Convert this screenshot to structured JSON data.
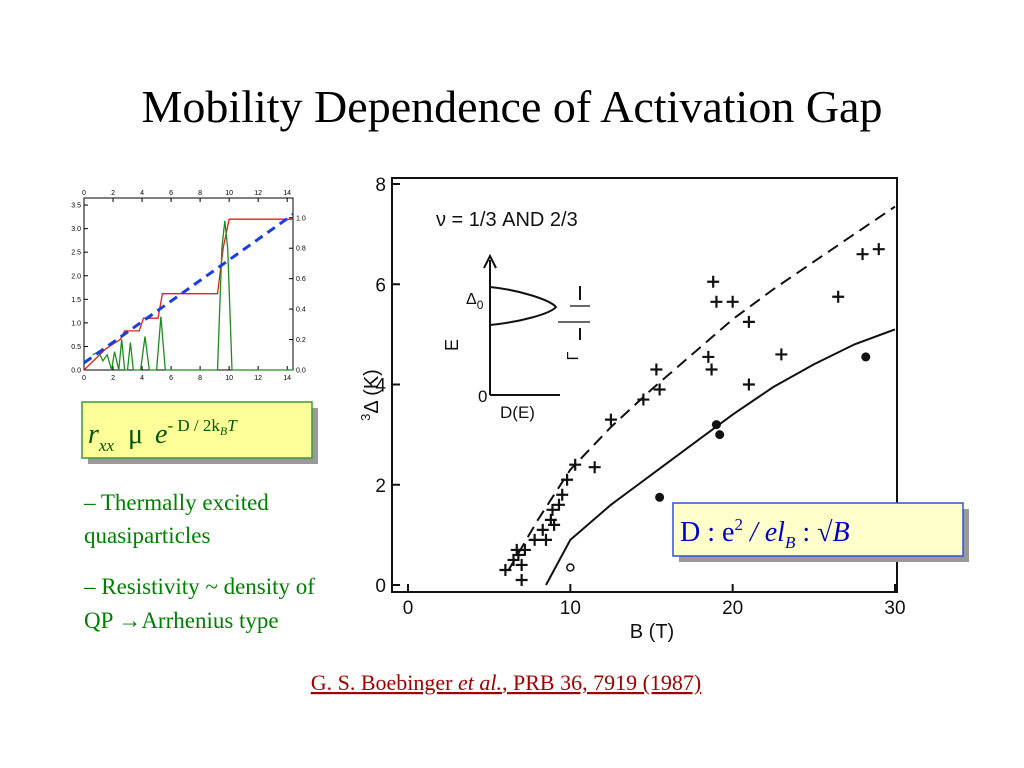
{
  "title": "Mobility Dependence of Activation Gap",
  "left_chart": {
    "type": "line",
    "xlim": [
      0,
      14.4
    ],
    "xticks": [
      0,
      2,
      4,
      6,
      8,
      10,
      12,
      14
    ],
    "ylim": [
      0,
      3.65
    ],
    "yticks": [
      {
        "value": 0,
        "label": "0.0"
      },
      0.5,
      {
        "value": 1,
        "label": "1.0"
      },
      1.5,
      {
        "value": 2,
        "label": "2.0"
      },
      2.5,
      {
        "value": 3,
        "label": "3.0"
      },
      3.5
    ],
    "y2lim": [
      0,
      1.13
    ],
    "y2ticks": [
      {
        "value": 0,
        "label": "0.0"
      },
      0.2,
      0.4,
      0.6,
      0.8,
      {
        "value": 1,
        "label": "1.0"
      }
    ],
    "series": [
      {
        "color": "#e02020",
        "style": "solid",
        "x": [
          0,
          0.5,
          1,
          1.5,
          2,
          2.5,
          2.8,
          3.8,
          4.1,
          5.1,
          5.4,
          9.2,
          9.6,
          10,
          14.4
        ],
        "values": [
          0,
          0.15,
          0.3,
          0.45,
          0.55,
          0.65,
          0.83,
          0.83,
          1.1,
          1.1,
          1.62,
          1.62,
          2.6,
          3.2,
          3.2
        ]
      },
      {
        "color": "#1a8f1a",
        "style": "solid",
        "axis": "y2",
        "x": [
          0.6,
          1,
          1.3,
          1.6,
          1.9,
          2.1,
          2.4,
          2.6,
          2.8,
          3.0,
          3.2,
          3.4,
          3.9,
          4.2,
          4.5,
          5.0,
          5.3,
          5.6,
          9.2,
          9.5,
          9.7,
          9.9,
          10.2,
          14.4
        ],
        "values": [
          0.1,
          0.12,
          0.06,
          0.1,
          0,
          0.12,
          0,
          0.2,
          0,
          0,
          0.18,
          0,
          0,
          0.22,
          0,
          0,
          0.35,
          0,
          0,
          0.8,
          0.98,
          0.8,
          0,
          0
        ]
      },
      {
        "color": "#1a3ee0",
        "style": "dashed",
        "x": [
          0,
          14.4
        ],
        "values": [
          0.15,
          3.3
        ]
      }
    ]
  },
  "formula1": {
    "r": "r",
    "sub": "xx",
    "prop": "μ",
    "e": "e",
    "exp": "- D / 2k",
    "expsub": "B",
    "expend": "T"
  },
  "bullets": [
    [
      "– Thermally excited",
      "quasiparticles"
    ],
    [
      "– Resistivity ~ density of",
      "QP ",
      "→",
      "Arrhenius type"
    ]
  ],
  "main_chart": {
    "type": "scatter",
    "xlabel": "B  (T)",
    "ylabel": "Δ  (K)",
    "ylabel_pre": "3",
    "annotation": "ν = 1/3  AND  2/3",
    "inset": {
      "ylabel": "E",
      "xlabel": "D(E)",
      "origin": "0",
      "gap": "Δ",
      "gap_sub": "0",
      "width": "Γ"
    },
    "xlim": [
      0,
      30
    ],
    "xticks": [
      0,
      10,
      20,
      30
    ],
    "ylim": [
      0,
      8
    ],
    "yticks": [
      0,
      2,
      4,
      6,
      8
    ],
    "color": "#111111",
    "series": [
      {
        "marker": "plus",
        "x": [
          6,
          6.5,
          6.7,
          6.8,
          7,
          7.2,
          7,
          7.8,
          8.3,
          8.5,
          8.8,
          8.9,
          9,
          9.5,
          9.3,
          9.8,
          10.3,
          11.5,
          12.5,
          14.5,
          15.3,
          15.5,
          18.5,
          18.7,
          18.8,
          19,
          20,
          21,
          21,
          23,
          26.5,
          28,
          29
        ],
        "values": [
          0.3,
          0.5,
          0.7,
          0.6,
          0.4,
          0.7,
          0.1,
          0.9,
          1.1,
          0.9,
          1.3,
          1.5,
          1.2,
          1.8,
          1.6,
          2.1,
          2.4,
          2.35,
          3.3,
          3.7,
          4.3,
          3.9,
          4.55,
          4.3,
          6.05,
          5.65,
          5.65,
          5.25,
          4.0,
          4.6,
          5.75,
          6.6,
          6.7
        ]
      },
      {
        "marker": "dot",
        "x": [
          15.5,
          19,
          19.2,
          28.2
        ],
        "values": [
          1.75,
          3.2,
          3.0,
          4.55
        ]
      },
      {
        "marker": "circle",
        "x": [
          10
        ],
        "values": [
          0.35
        ]
      },
      {
        "marker": "line",
        "style": "dashed",
        "x": [
          6.2,
          8,
          10,
          12.5,
          15,
          17.5,
          20,
          22.5,
          25,
          27.5,
          30
        ],
        "values": [
          0.3,
          1.3,
          2.3,
          3.15,
          3.9,
          4.6,
          5.3,
          5.9,
          6.45,
          7.0,
          7.55
        ]
      },
      {
        "marker": "line",
        "style": "solid",
        "x": [
          8.5,
          10,
          12.5,
          15,
          17.5,
          20,
          22.5,
          25,
          27.5,
          30
        ],
        "values": [
          0,
          0.9,
          1.6,
          2.2,
          2.8,
          3.4,
          3.95,
          4.4,
          4.8,
          5.1
        ]
      }
    ]
  },
  "formula2": {
    "d": "D  :   e",
    "sup": "2",
    "mid": " / el",
    "sub": "B",
    "prop": "  :   ",
    "root": "√B"
  },
  "citation": {
    "author": "G. S. Boebinger ",
    "etal": "et al.",
    "ref": ", PRB 36, 7919 (1987)"
  }
}
